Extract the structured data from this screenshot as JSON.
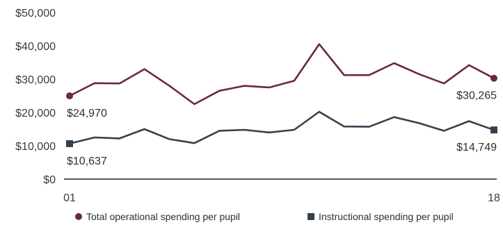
{
  "chart_data": {
    "type": "line",
    "title": "",
    "xlabel": "",
    "ylabel": "",
    "x": [
      "01",
      "02",
      "03",
      "04",
      "05",
      "06",
      "07",
      "08",
      "09",
      "10",
      "11",
      "12",
      "13",
      "14",
      "15",
      "16",
      "17",
      "18"
    ],
    "x_tick_labels": [
      {
        "index": 0,
        "label": "01"
      },
      {
        "index": 17,
        "label": "18"
      }
    ],
    "ylim": [
      0,
      50000
    ],
    "y_ticks": [
      {
        "value": 0,
        "label": "$0"
      },
      {
        "value": 10000,
        "label": "$10,000"
      },
      {
        "value": 20000,
        "label": "$20,000"
      },
      {
        "value": 30000,
        "label": "$30,000"
      },
      {
        "value": 40000,
        "label": "$40,000"
      },
      {
        "value": 50000,
        "label": "$50,000"
      }
    ],
    "grid": false,
    "legend_position": "bottom",
    "series": [
      {
        "key": "total",
        "name": "Total operational spending per pupil",
        "color": "#6b2a34",
        "marker": "circle",
        "values": [
          24970,
          28800,
          28700,
          33000,
          28000,
          22500,
          26500,
          28000,
          27500,
          29500,
          40500,
          31200,
          31200,
          34800,
          31500,
          28700,
          34200,
          30265
        ],
        "labels": [
          {
            "index": 0,
            "text": "$24,970",
            "position": "below-right"
          },
          {
            "index": 17,
            "text": "$30,265",
            "position": "below-left"
          }
        ]
      },
      {
        "key": "instructional",
        "name": "Instructional spending per pupil",
        "color": "#34414d",
        "marker": "square",
        "values": [
          10637,
          12500,
          12200,
          15000,
          12000,
          10800,
          14500,
          14800,
          14000,
          14800,
          20200,
          15800,
          15700,
          18600,
          16800,
          14500,
          17400,
          14749
        ],
        "labels": [
          {
            "index": 0,
            "text": "$10,637",
            "position": "below-right"
          },
          {
            "index": 17,
            "text": "$14,749",
            "position": "below-left"
          }
        ]
      }
    ]
  }
}
